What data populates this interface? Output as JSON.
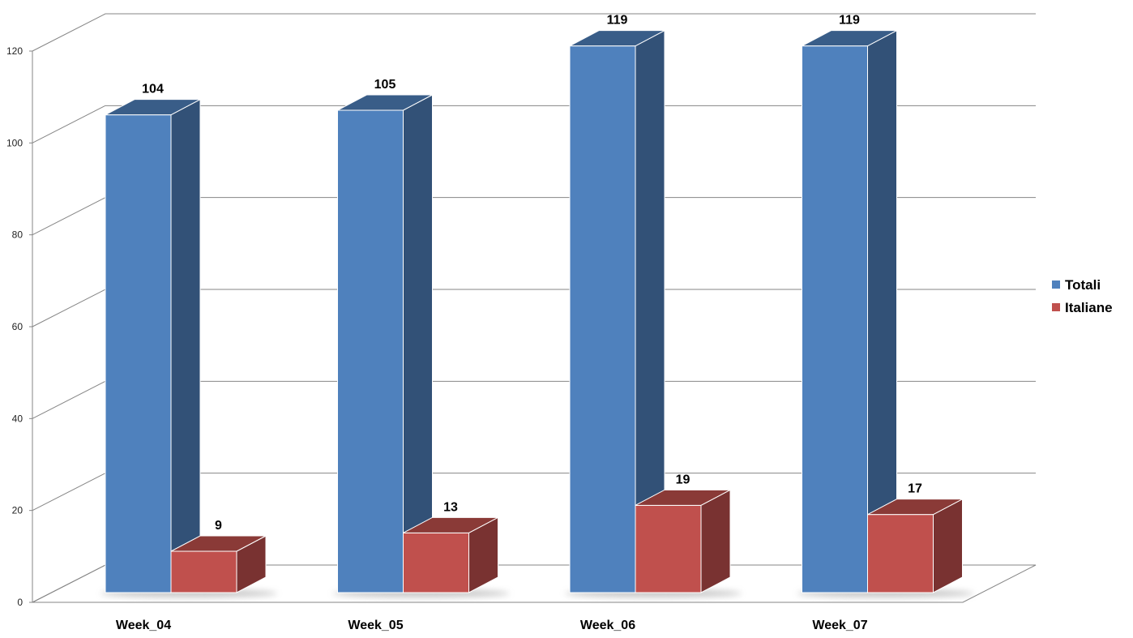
{
  "chart_data": {
    "type": "bar",
    "title": "",
    "xlabel": "",
    "ylabel": "",
    "categories": [
      "Week_04",
      "Week_05",
      "Week_06",
      "Week_07"
    ],
    "series": [
      {
        "name": "Totali",
        "values": [
          104,
          105,
          119,
          119
        ],
        "color": "#4f81bd"
      },
      {
        "name": "Italiane",
        "values": [
          9,
          13,
          19,
          17
        ],
        "color": "#c0504d"
      }
    ],
    "ylim": [
      0,
      120
    ],
    "yticks": [
      0,
      20,
      40,
      60,
      80,
      100,
      120
    ],
    "grid": true,
    "legend": "right",
    "style": "3d-column"
  }
}
